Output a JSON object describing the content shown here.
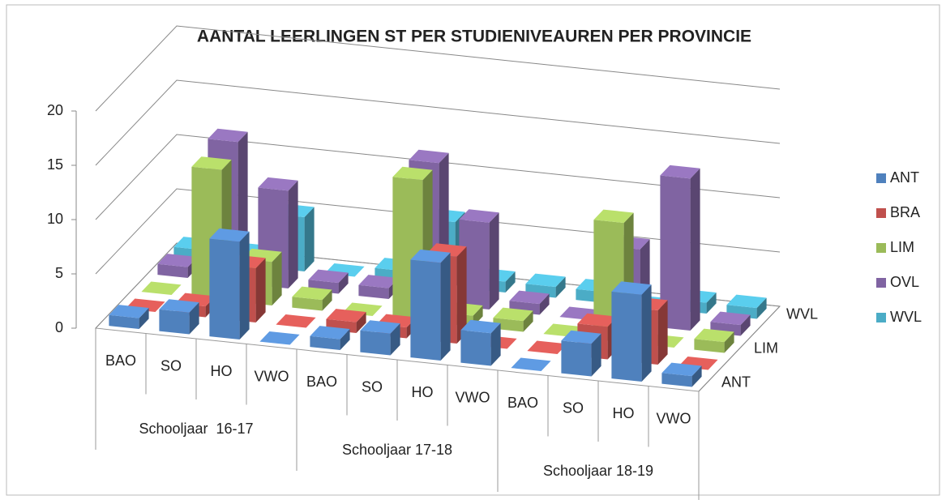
{
  "chart_data": {
    "type": "bar3d",
    "title": "AANTAL LEERLINGEN ST PER STUDIENIVEAUREN PER PROVINCIE",
    "categories": [
      "BAO",
      "SO",
      "HO",
      "VWO",
      "BAO",
      "SO",
      "HO",
      "VWO",
      "BAO",
      "SO",
      "HO",
      "VWO"
    ],
    "groups": [
      "Schooljaar  16-17",
      "Schooljaar 17-18",
      "Schooljaar 18-19"
    ],
    "series": [
      {
        "name": "ANT",
        "color": "#4f81bd",
        "values": [
          1,
          2,
          9,
          0,
          1,
          2,
          9,
          3,
          0,
          3,
          8,
          1
        ]
      },
      {
        "name": "BRA",
        "color": "#c0504d",
        "values": [
          0,
          1,
          5,
          0,
          1,
          1,
          8,
          0,
          0,
          3,
          5,
          0
        ]
      },
      {
        "name": "LIM",
        "color": "#9bbb59",
        "values": [
          0,
          12,
          4,
          1,
          0,
          13,
          1,
          1,
          0,
          11,
          0,
          1
        ]
      },
      {
        "name": "OVL",
        "color": "#8064a2",
        "values": [
          1,
          13,
          9,
          1,
          1,
          13,
          8,
          1,
          0,
          7,
          14,
          1
        ]
      },
      {
        "name": "WVL",
        "color": "#4bacc6",
        "values": [
          1,
          1,
          5,
          0,
          1,
          6,
          1,
          1,
          1,
          0,
          1,
          1
        ]
      }
    ],
    "ylim": [
      0,
      20
    ],
    "yticks": [
      0,
      5,
      10,
      15,
      20
    ],
    "grid": true,
    "legend": "right"
  }
}
